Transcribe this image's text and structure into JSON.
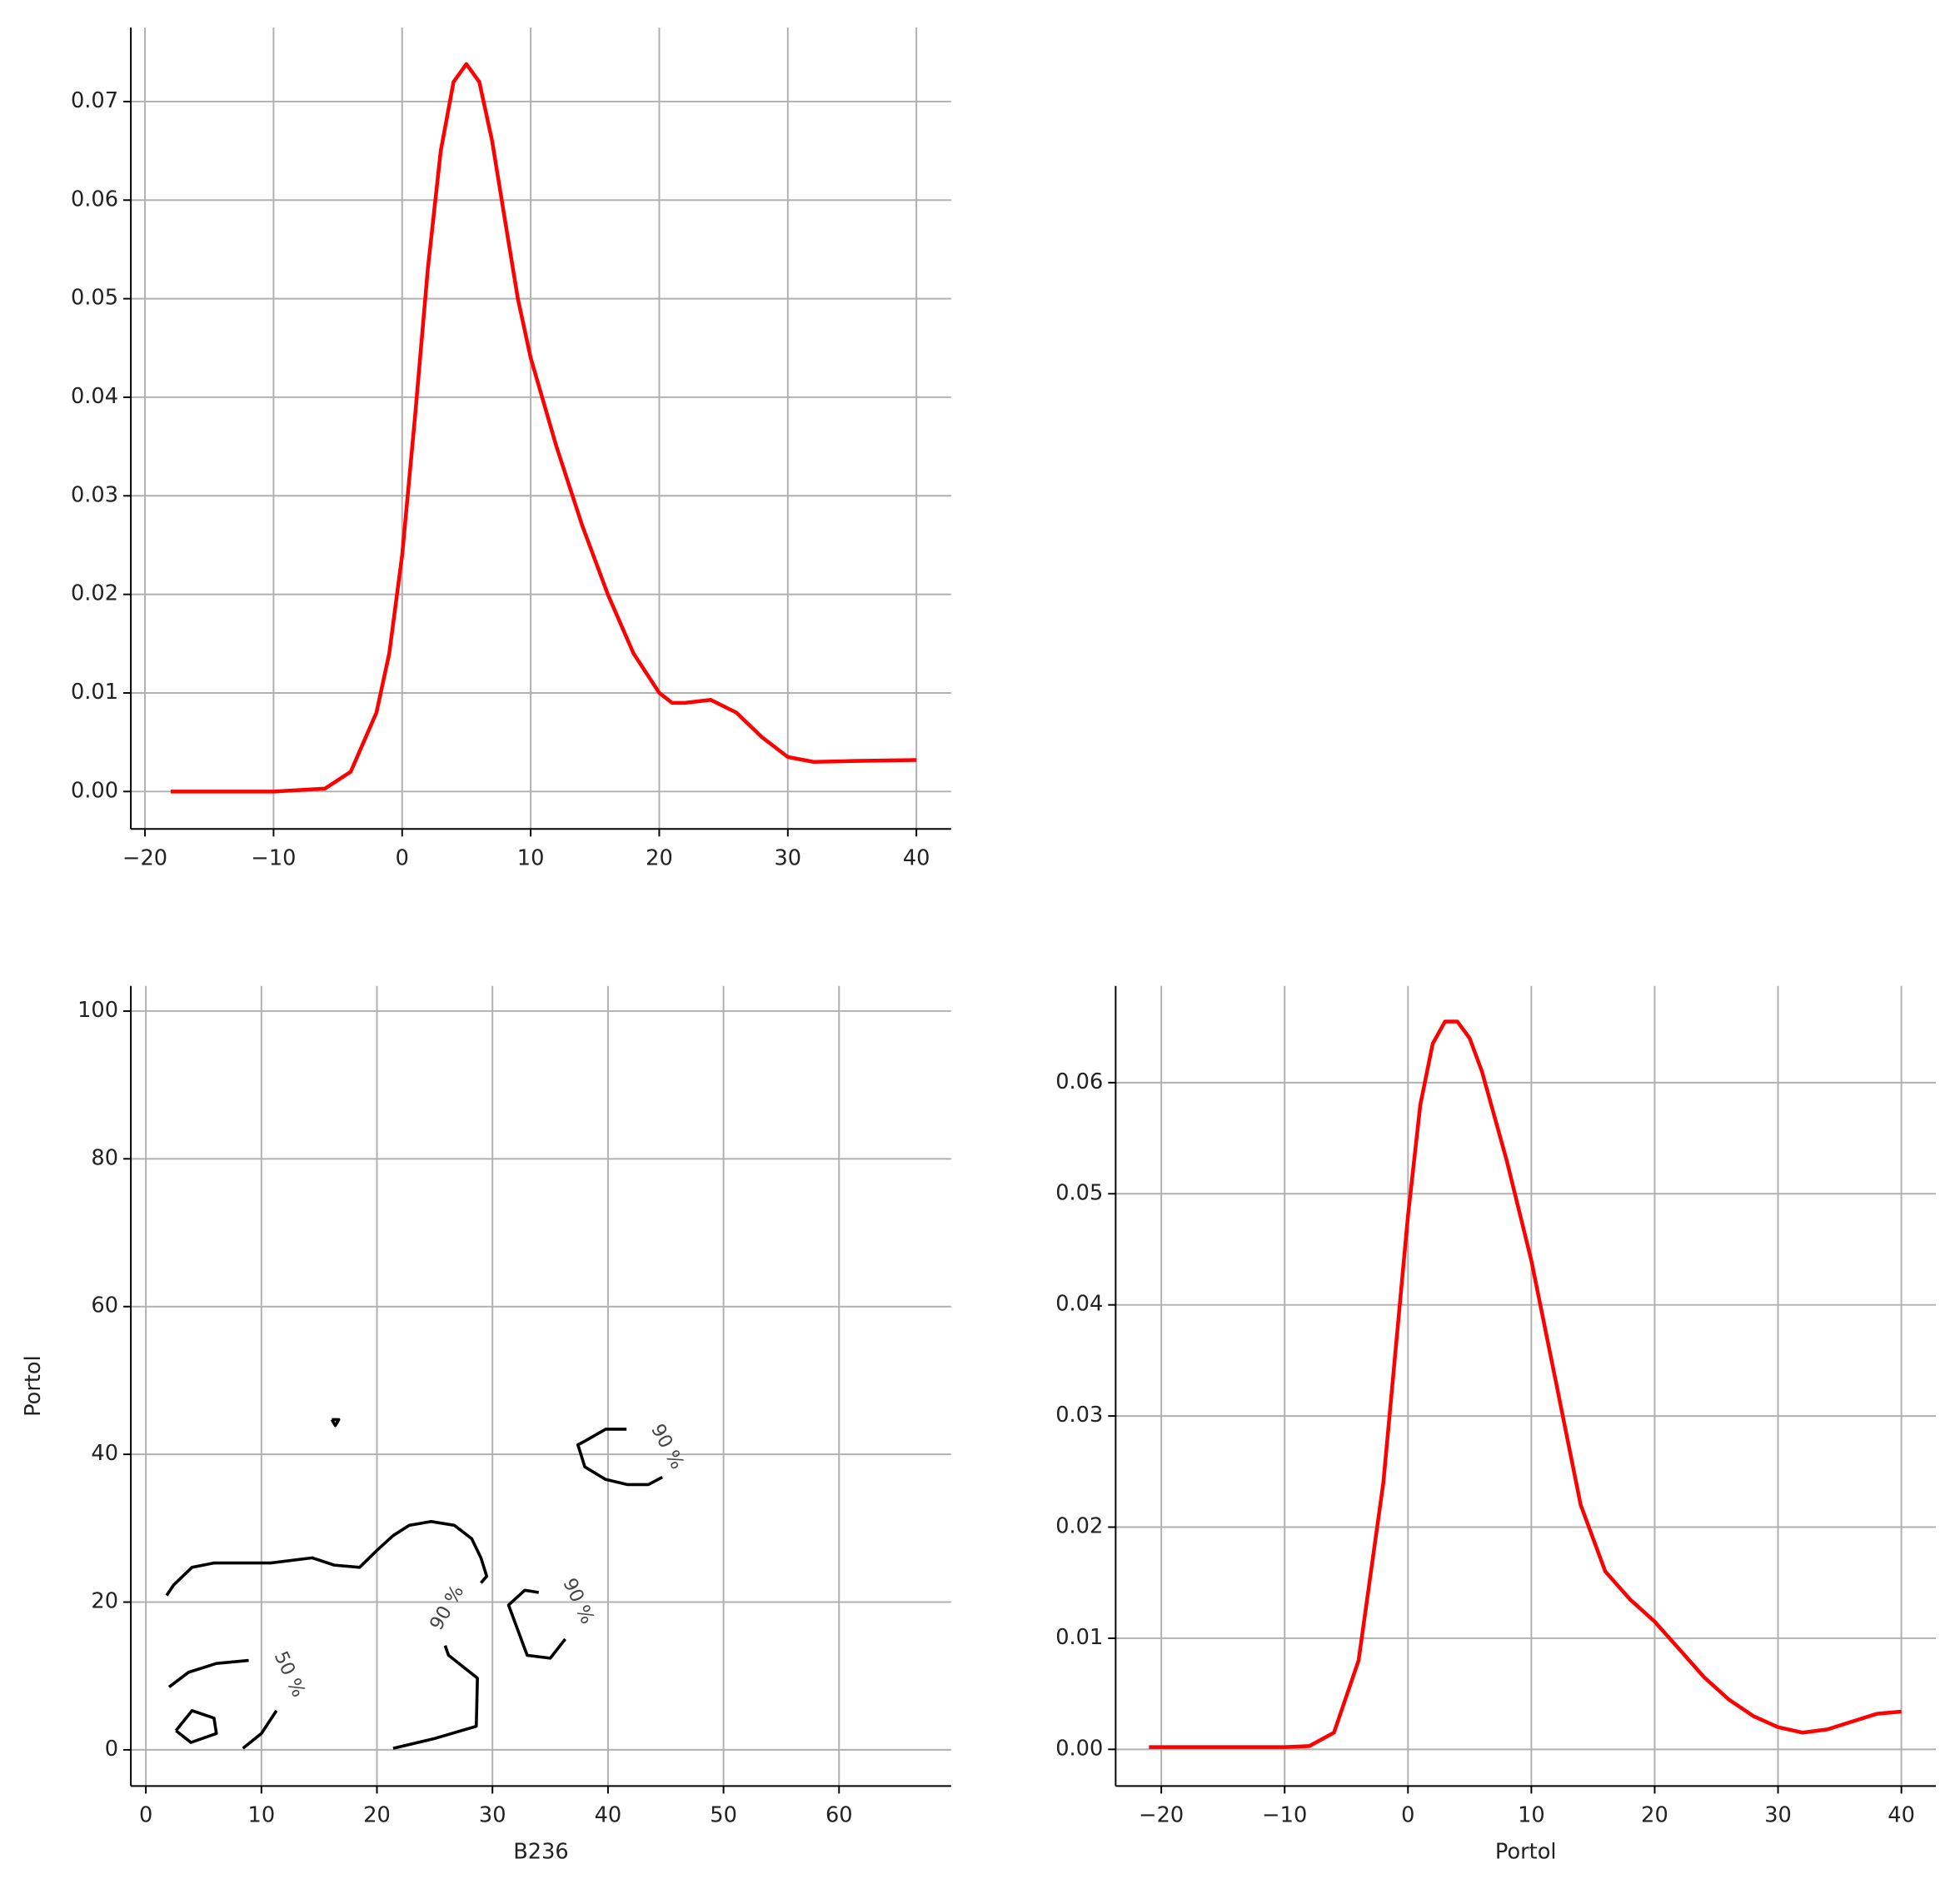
{
  "chart_data": [
    {
      "type": "line",
      "color": "#ff0000",
      "grid": true,
      "x": [
        -18,
        -10,
        -6,
        -4,
        -2,
        -1,
        0,
        1,
        2,
        3,
        4,
        5,
        6,
        7,
        8,
        9,
        10,
        12,
        14,
        16,
        18,
        20,
        21,
        22,
        24,
        26,
        28,
        30,
        32,
        35,
        40
      ],
      "values": [
        0,
        0,
        0.0003,
        0.002,
        0.008,
        0.014,
        0.024,
        0.038,
        0.053,
        0.065,
        0.072,
        0.0738,
        0.072,
        0.066,
        0.058,
        0.05,
        0.044,
        0.035,
        0.027,
        0.02,
        0.014,
        0.01,
        0.009,
        0.009,
        0.0093,
        0.008,
        0.0055,
        0.0035,
        0.003,
        0.0031,
        0.0032
      ],
      "xlim": [
        -21.1,
        42.7
      ],
      "ylim": [
        -0.0038,
        0.0775
      ],
      "xticks": [
        {
          "value": -20,
          "label": "−20"
        },
        {
          "value": -10,
          "label": "−10"
        },
        0,
        10,
        20,
        30,
        40
      ],
      "yticks": [
        {
          "value": 0,
          "label": "0.00"
        },
        {
          "value": 0.01,
          "label": "0.01"
        },
        {
          "value": 0.02,
          "label": "0.02"
        },
        {
          "value": 0.03,
          "label": "0.03"
        },
        {
          "value": 0.04,
          "label": "0.04"
        },
        {
          "value": 0.05,
          "label": "0.05"
        },
        {
          "value": 0.06,
          "label": "0.06"
        },
        {
          "value": 0.07,
          "label": "0.07"
        }
      ]
    },
    {
      "type": "contour",
      "color": "#000000",
      "grid": true,
      "x_label": "B236",
      "y_label": "Portol",
      "series": [
        {
          "x": [
            1.8,
            2.4,
            4.0,
            5.9,
            10.8,
            14.4,
            16.3,
            18.5,
            20.0,
            21.4,
            22.8,
            24.7,
            26.7,
            28.2,
            29.0,
            29.5,
            29.0
          ],
          "y": [
            20.9,
            22.3,
            24.7,
            25.3,
            25.3,
            26.0,
            25.0,
            24.7,
            27.0,
            29.0,
            30.4,
            30.9,
            30.4,
            28.6,
            26.0,
            23.5,
            22.6
          ]
        },
        {
          "x": [
            25.9,
            26.2,
            28.7,
            28.6,
            24.9,
            21.4
          ],
          "y": [
            14.1,
            12.8,
            9.7,
            3.2,
            1.5,
            0.2
          ]
        },
        {
          "x": [
            2.0,
            3.7,
            6.1,
            8.9
          ],
          "y": [
            8.5,
            10.5,
            11.7,
            12.1
          ]
        },
        {
          "x": [
            8.4,
            10.0,
            11.3
          ],
          "y": [
            0.2,
            2.2,
            5.3
          ]
        },
        {
          "x": [
            2.6,
            3.9,
            6.1,
            5.9,
            4.0,
            2.6
          ],
          "y": [
            2.6,
            1.0,
            2.2,
            4.3,
            5.3,
            2.6
          ]
        },
        {
          "x": [
            34.0,
            32.8,
            31.4,
            33.0,
            35.0,
            36.3
          ],
          "y": [
            21.3,
            21.6,
            19.6,
            12.8,
            12.4,
            15.0
          ]
        },
        {
          "x": [
            41.6,
            39.8,
            37.9,
            37.4,
            38.0,
            39.8,
            41.7,
            43.5,
            44.7
          ],
          "y": [
            43.4,
            43.4,
            41.7,
            41.3,
            38.3,
            36.6,
            35.9,
            35.9,
            36.9
          ]
        },
        {
          "x": [
            16.1,
            16.7,
            16.4,
            16.1
          ],
          "y": [
            44.7,
            44.7,
            43.9,
            44.7
          ]
        }
      ],
      "contour_labels": [
        "90 %",
        "90 %",
        "90 %",
        "50 %"
      ],
      "xlim": [
        -1.3,
        69.7
      ],
      "ylim": [
        -4.9,
        103.4
      ],
      "xticks": [
        0,
        10,
        20,
        30,
        40,
        50,
        60
      ],
      "yticks": [
        0,
        20,
        40,
        60,
        80,
        100
      ]
    },
    {
      "type": "line",
      "color": "#ff0000",
      "grid": true,
      "x_label": "Portol",
      "x": [
        -21,
        -10,
        -8,
        -6,
        -4,
        -2,
        -1,
        0,
        1,
        2,
        3,
        4,
        5,
        6,
        8,
        10,
        12,
        14,
        16,
        18,
        20,
        22,
        24,
        26,
        28,
        30,
        32,
        34,
        36,
        38,
        40
      ],
      "values": [
        0.0002,
        0.0002,
        0.0003,
        0.0015,
        0.008,
        0.024,
        0.036,
        0.048,
        0.058,
        0.0635,
        0.0655,
        0.0655,
        0.064,
        0.061,
        0.053,
        0.044,
        0.033,
        0.022,
        0.016,
        0.0135,
        0.0115,
        0.009,
        0.0065,
        0.0045,
        0.003,
        0.002,
        0.0015,
        0.0018,
        0.0025,
        0.0032,
        0.0034
      ],
      "xlim": [
        -23.7,
        42.8
      ],
      "ylim": [
        -0.0033,
        0.0687
      ],
      "xticks": [
        {
          "value": -20,
          "label": "−20"
        },
        {
          "value": -10,
          "label": "−10"
        },
        0,
        10,
        20,
        30,
        40
      ],
      "yticks": [
        {
          "value": 0,
          "label": "0.00"
        },
        {
          "value": 0.01,
          "label": "0.01"
        },
        {
          "value": 0.02,
          "label": "0.02"
        },
        {
          "value": 0.03,
          "label": "0.03"
        },
        {
          "value": 0.04,
          "label": "0.04"
        },
        {
          "value": 0.05,
          "label": "0.05"
        },
        {
          "value": 0.06,
          "label": "0.06"
        }
      ]
    }
  ]
}
